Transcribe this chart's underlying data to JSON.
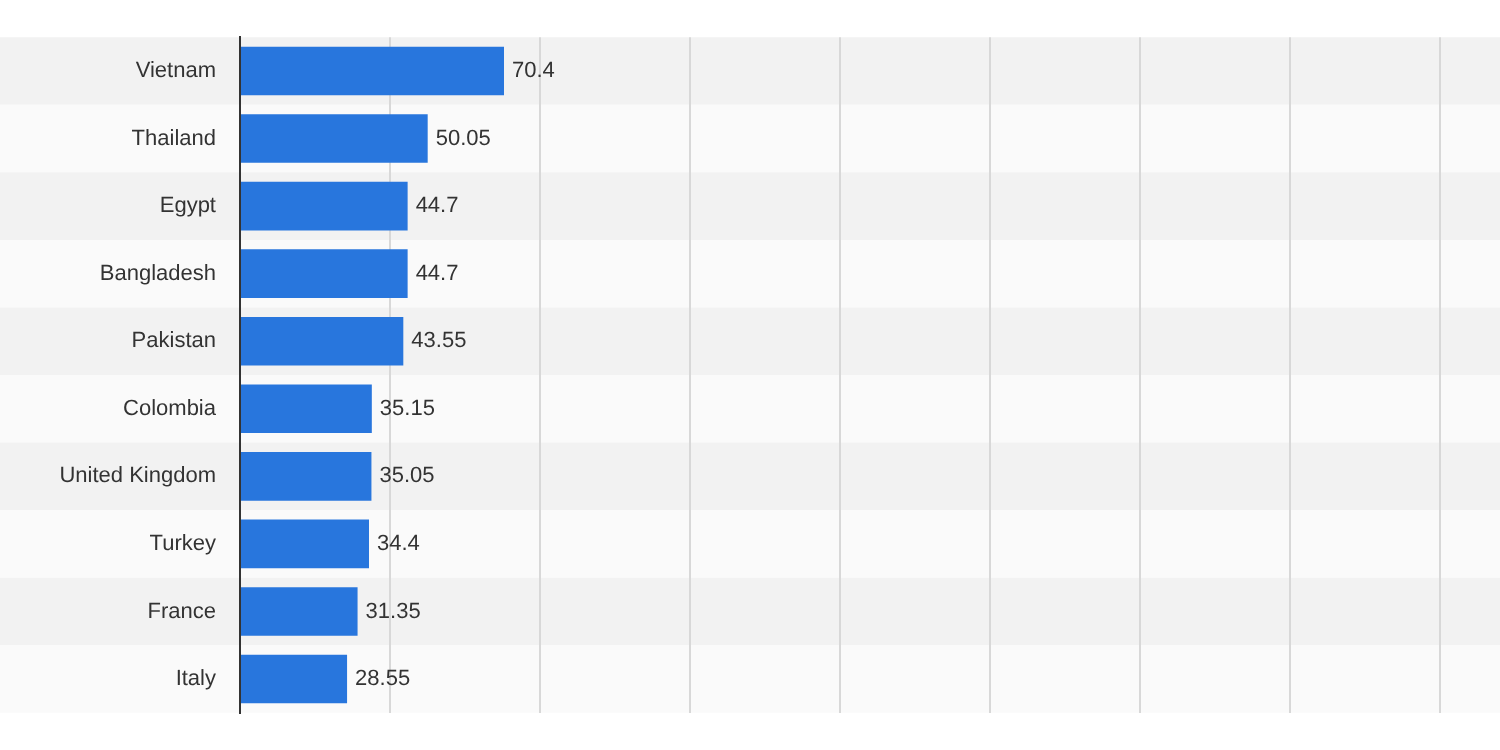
{
  "chart_data": {
    "type": "bar",
    "orientation": "horizontal",
    "categories": [
      "Vietnam",
      "Thailand",
      "Egypt",
      "Bangladesh",
      "Pakistan",
      "Colombia",
      "United Kingdom",
      "Turkey",
      "France",
      "Italy"
    ],
    "values": [
      70.4,
      50.05,
      44.7,
      44.7,
      43.55,
      35.15,
      35.05,
      34.4,
      31.35,
      28.55
    ],
    "color": "#2876dd",
    "data_labels": true,
    "xlim": [
      0,
      320
    ],
    "xticks": [
      {
        "value": 0,
        "label": null
      },
      {
        "value": 40,
        "label": null
      },
      {
        "value": 80,
        "label": null
      },
      {
        "value": 120,
        "label": null
      },
      {
        "value": 160,
        "label": null
      },
      {
        "value": 200,
        "label": null
      },
      {
        "value": 240,
        "label": null
      },
      {
        "value": 280,
        "label": null
      },
      {
        "value": 320,
        "label": null
      }
    ],
    "grid": "x",
    "tick_labels": "y",
    "legend": false
  }
}
